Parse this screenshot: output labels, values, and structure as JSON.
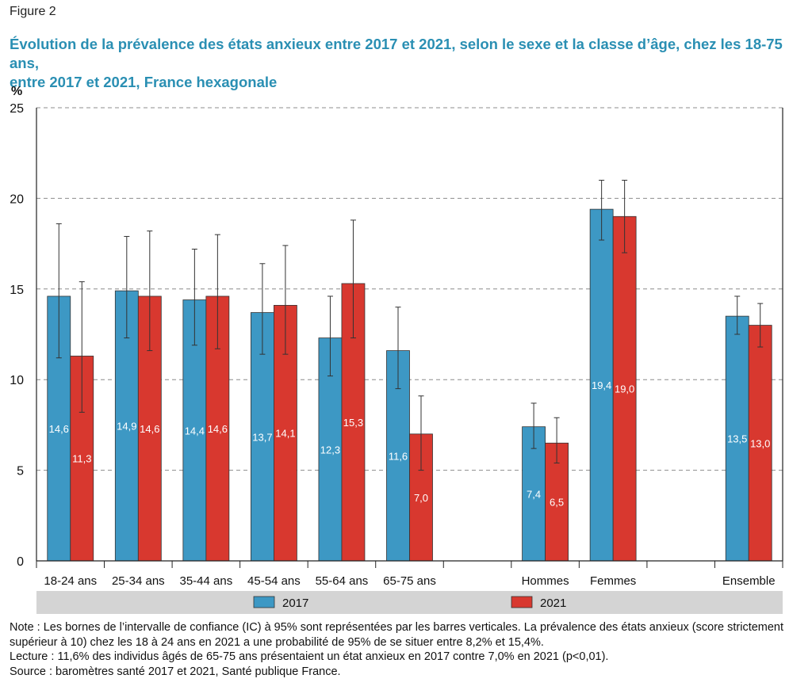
{
  "figure_label": "Figure 2",
  "title_line1": "Évolution de la prévalence des états anxieux entre 2017 et 2021, selon le sexe et la classe d’âge, chez les 18-75 ans,",
  "title_line2": "entre 2017 et 2021, France hexagonale",
  "colors": {
    "2017": "#3d98c4",
    "2021": "#d8382f",
    "legend_band": "#d4d4d4"
  },
  "chart_data": {
    "type": "bar",
    "ylabel": "%",
    "ylim": [
      0,
      25
    ],
    "yticks": [
      0,
      5,
      10,
      15,
      20,
      25
    ],
    "grid": "horizontal dashed",
    "legend_position": "bottom",
    "categories": [
      "18-24 ans",
      "25-34 ans",
      "35-44 ans",
      "45-54 ans",
      "55-64 ans",
      "65-75 ans",
      "",
      "Hommes",
      "Femmes",
      "",
      "Ensemble"
    ],
    "series": [
      {
        "name": "2017",
        "values": [
          14.6,
          14.9,
          14.4,
          13.7,
          12.3,
          11.6,
          null,
          7.4,
          19.4,
          null,
          13.5
        ],
        "labels": [
          "14,6",
          "14,9",
          "14,4",
          "13,7",
          "12,3",
          "11,6",
          "",
          "7,4",
          "19,4",
          "",
          "13,5"
        ],
        "ci_low": [
          11.2,
          12.3,
          11.9,
          11.4,
          10.2,
          9.5,
          null,
          6.2,
          17.7,
          null,
          12.5
        ],
        "ci_high": [
          18.6,
          17.9,
          17.2,
          16.4,
          14.6,
          14.0,
          null,
          8.7,
          21.0,
          null,
          14.6
        ]
      },
      {
        "name": "2021",
        "values": [
          11.3,
          14.6,
          14.6,
          14.1,
          15.3,
          7.0,
          null,
          6.5,
          19.0,
          null,
          13.0
        ],
        "labels": [
          "11,3",
          "14,6",
          "14,6",
          "14,1",
          "15,3",
          "7,0",
          "",
          "6,5",
          "19,0",
          "",
          "13,0"
        ],
        "ci_low": [
          8.2,
          11.6,
          11.7,
          11.4,
          12.3,
          5.0,
          null,
          5.4,
          17.0,
          null,
          11.8
        ],
        "ci_high": [
          15.4,
          18.2,
          18.0,
          17.4,
          18.8,
          9.1,
          null,
          7.9,
          21.0,
          null,
          14.2
        ]
      }
    ]
  },
  "notes": {
    "note_line1": "Note : Les bornes de l’intervalle de confiance (IC) à 95% sont représentées par les barres verticales. La prévalence des états anxieux (score strictement",
    "note_line2": "supérieur à 10) chez les 18 à 24 ans en 2021 a une probabilité de 95% de se situer entre 8,2% et 15,4%.",
    "lecture": "Lecture : 11,6% des individus âgés de 65-75 ans présentaient un état anxieux en 2017 contre 7,0% en 2021 (p<0,01).",
    "source": "Source : baromètres santé 2017 et 2021, Santé publique France."
  }
}
